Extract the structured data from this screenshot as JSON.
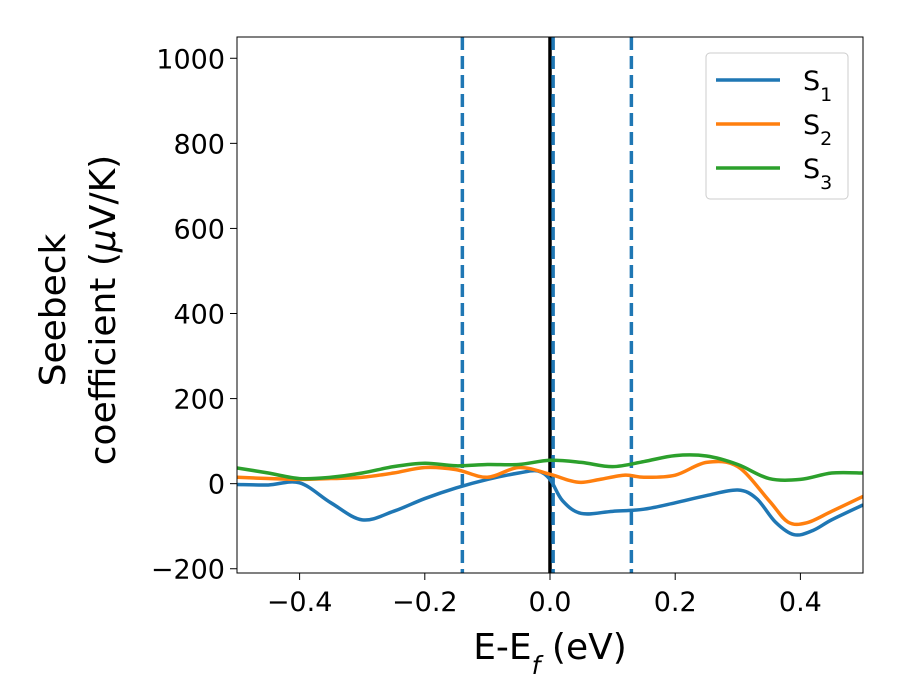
{
  "chart_data": {
    "type": "line",
    "title": "",
    "xlabel": {
      "base": "E-E",
      "sub": "f",
      "rest": " (eV)"
    },
    "ylabel": {
      "line1": "Seebeck",
      "line2": "coefficient  (",
      "mu": "μ",
      "rest": "V/K)"
    },
    "xlim": [
      -0.5,
      0.5
    ],
    "ylim": [
      -210,
      1050
    ],
    "xticks": [
      -0.4,
      -0.2,
      0.0,
      0.2,
      0.4
    ],
    "xtick_labels": [
      "−0.4",
      "−0.2",
      "0.0",
      "0.2",
      "0.4"
    ],
    "yticks": [
      -200,
      0,
      200,
      400,
      600,
      800,
      1000
    ],
    "ytick_labels": [
      "−200",
      "0",
      "200",
      "400",
      "600",
      "800",
      "1000"
    ],
    "grid": false,
    "legend_position": "top-right",
    "vlines": [
      {
        "x": -0.14,
        "style": "dashed",
        "color": "#1f77b4"
      },
      {
        "x": 0.0,
        "style": "solid",
        "color": "#000000"
      },
      {
        "x": 0.005,
        "style": "dashed",
        "color": "#1f77b4"
      },
      {
        "x": 0.13,
        "style": "dashed",
        "color": "#1f77b4"
      }
    ],
    "series": [
      {
        "name": "S",
        "sub": "1",
        "color": "#1f77b4",
        "x": [
          -0.5,
          -0.45,
          -0.4,
          -0.35,
          -0.3,
          -0.25,
          -0.2,
          -0.15,
          -0.1,
          -0.05,
          -0.02,
          0.0,
          0.02,
          0.05,
          0.1,
          0.15,
          0.2,
          0.25,
          0.3,
          0.33,
          0.36,
          0.39,
          0.42,
          0.45,
          0.5
        ],
        "y": [
          -2,
          -3,
          2,
          -45,
          -85,
          -65,
          -35,
          -10,
          10,
          25,
          30,
          10,
          -40,
          -70,
          -65,
          -60,
          -45,
          -28,
          -15,
          -35,
          -90,
          -120,
          -110,
          -85,
          -50
        ]
      },
      {
        "name": "S",
        "sub": "2",
        "color": "#ff7f0e",
        "x": [
          -0.5,
          -0.45,
          -0.4,
          -0.35,
          -0.3,
          -0.25,
          -0.2,
          -0.15,
          -0.1,
          -0.05,
          0.0,
          0.03,
          0.05,
          0.08,
          0.12,
          0.15,
          0.2,
          0.25,
          0.3,
          0.35,
          0.38,
          0.41,
          0.45,
          0.5
        ],
        "y": [
          15,
          12,
          10,
          12,
          15,
          25,
          38,
          33,
          15,
          38,
          22,
          8,
          3,
          10,
          20,
          15,
          20,
          50,
          40,
          -40,
          -90,
          -92,
          -65,
          -30
        ]
      },
      {
        "name": "S",
        "sub": "3",
        "color": "#2ca02c",
        "x": [
          -0.5,
          -0.45,
          -0.4,
          -0.35,
          -0.3,
          -0.25,
          -0.2,
          -0.15,
          -0.1,
          -0.05,
          0.0,
          0.05,
          0.1,
          0.15,
          0.2,
          0.25,
          0.3,
          0.35,
          0.4,
          0.45,
          0.5
        ],
        "y": [
          37,
          25,
          12,
          15,
          25,
          40,
          48,
          42,
          45,
          45,
          55,
          50,
          40,
          52,
          66,
          65,
          45,
          12,
          10,
          25,
          25
        ]
      }
    ]
  }
}
